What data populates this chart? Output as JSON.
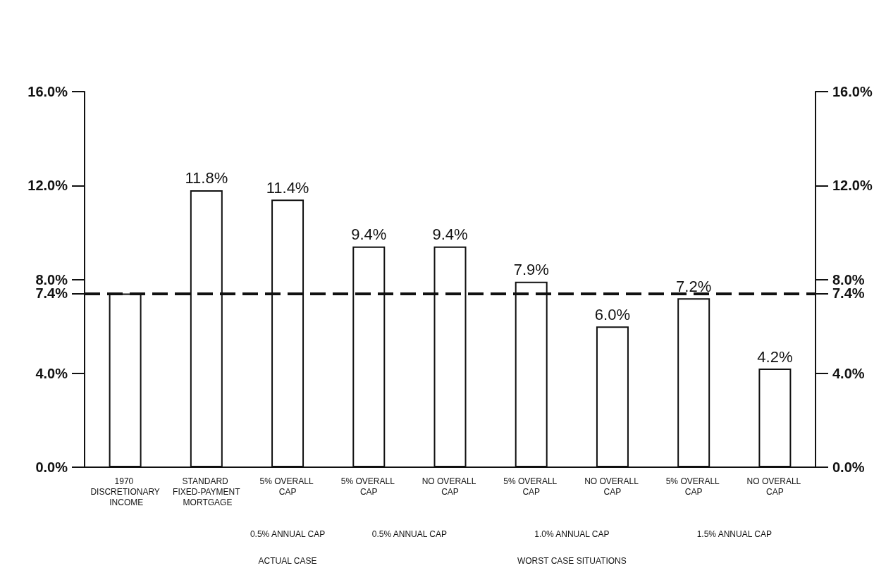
{
  "chart_data": {
    "type": "bar",
    "categories": [
      "1970 DISCRETIONARY INCOME",
      "STANDARD FIXED-PAYMENT MORTGAGE",
      "5% OVERALL CAP",
      "5% OVERALL CAP",
      "NO OVERALL CAP",
      "5% OVERALL CAP",
      "NO OVERALL CAP",
      "5% OVERALL CAP",
      "NO OVERALL CAP"
    ],
    "values": [
      7.4,
      11.8,
      11.4,
      9.4,
      9.4,
      7.9,
      6.0,
      7.2,
      4.2
    ],
    "value_labels": [
      null,
      "11.8%",
      "11.4%",
      "9.4%",
      "9.4%",
      "7.9%",
      "6.0%",
      "7.2%",
      "4.2%"
    ],
    "color": "#ffffff",
    "ylim": [
      0,
      16
    ],
    "yticks": [
      {
        "value": 0,
        "label": "0.0%"
      },
      {
        "value": 4,
        "label": "4.0%"
      },
      {
        "value": 7.4,
        "label": "7.4%"
      },
      {
        "value": 8,
        "label": "8.0%"
      },
      {
        "value": 12,
        "label": "12.0%"
      },
      {
        "value": 16,
        "label": "16.0%"
      }
    ],
    "y2lim": [
      0,
      16
    ],
    "y2ticks": [
      {
        "value": 0,
        "label": "0.0%"
      },
      {
        "value": 4,
        "label": "4.0%"
      },
      {
        "value": 7.4,
        "label": "7.4%"
      },
      {
        "value": 8,
        "label": "8.0%"
      },
      {
        "value": 12,
        "label": "12.0%"
      },
      {
        "value": 16,
        "label": "16.0%"
      }
    ],
    "ref_lines": [
      {
        "axis": "y",
        "value": 7.4,
        "color": "#111111",
        "line_style": "dashed"
      }
    ],
    "annotations": [
      "0.5% ANNUAL CAP",
      "ACTUAL CASE",
      "0.5% ANNUAL CAP",
      "1.0% ANNUAL CAP",
      "1.5% ANNUAL CAP",
      "WORST CASE SITUATIONS"
    ],
    "grid": false
  }
}
